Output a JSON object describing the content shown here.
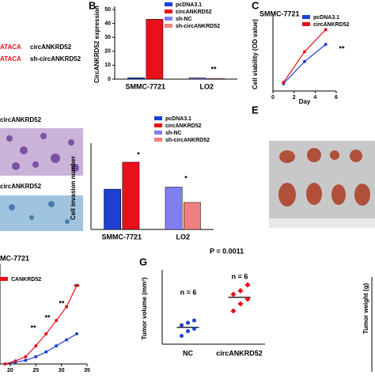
{
  "panel_labels": [
    "B",
    "C",
    "E",
    "G"
  ],
  "texts": {
    "top_row1": "ATACA",
    "top_row1_name": "circANKRD52",
    "top_row2": "ATACA",
    "top_row2_name": "sh-circANKRD52",
    "image_label1": "circANKRD52",
    "image_label2": "circANKRD52",
    "weight_label": "Tumor weight (g)"
  },
  "chart_data": [
    {
      "type": "bar",
      "y_label": "CircANKRD52 expression",
      "categories": [
        "SMMC-7721",
        "LO2"
      ],
      "series": [
        {
          "name": "pcDNA3.1",
          "color": "#1f3fd0",
          "values": [
            1,
            null
          ]
        },
        {
          "name": "circANKRD52",
          "color": "#e8101a",
          "values": [
            43,
            null
          ]
        },
        {
          "name": "sh-NC",
          "color": "#7f7ff0",
          "values": [
            null,
            1
          ]
        },
        {
          "name": "sh-circANKRD52",
          "color": "#f07f80",
          "values": [
            null,
            0.5
          ]
        }
      ],
      "ylim": [
        0,
        50
      ],
      "yticks": [
        0,
        10,
        20,
        30,
        40,
        50
      ],
      "annotations": [
        "**",
        "**"
      ]
    },
    {
      "type": "line",
      "title": "SMMC-7721",
      "x_label": "Day",
      "y_label": "Cell viability (OD value)",
      "x": [
        1,
        3,
        5
      ],
      "xlim": [
        0,
        6
      ],
      "xticks": [
        0,
        2,
        4,
        6
      ],
      "ylim": [
        0,
        3
      ],
      "series": [
        {
          "name": "pcDNA3.1",
          "color": "#1f3fd0",
          "values": [
            0.3,
            1.2,
            1.9
          ]
        },
        {
          "name": "circANKRD52",
          "color": "#e8101a",
          "values": [
            0.35,
            1.6,
            2.5
          ]
        }
      ],
      "annotations": [
        "**"
      ]
    },
    {
      "type": "bar",
      "y_label": "Cell invasion number",
      "categories": [
        "SMMC-7721",
        "LO2"
      ],
      "series": [
        {
          "name": "pcDNA3.1",
          "color": "#1f3fd0",
          "values": [
            97,
            null
          ]
        },
        {
          "name": "circANKRD52",
          "color": "#e8101a",
          "values": [
            162,
            null
          ]
        },
        {
          "name": "sh-NC",
          "color": "#7f7ff0",
          "values": [
            null,
            102
          ]
        },
        {
          "name": "sh-circANKRD52",
          "color": "#f07f80",
          "values": [
            null,
            65
          ]
        }
      ],
      "ylim": [
        0,
        200
      ],
      "annotations": [
        "*",
        "*"
      ]
    },
    {
      "type": "line",
      "title": "MC-7721",
      "x": [
        19,
        21,
        23,
        25,
        27,
        29,
        31,
        33
      ],
      "xlim": [
        18,
        35
      ],
      "xticks": [
        20,
        25,
        30,
        35
      ],
      "ylim": [
        0,
        1.6
      ],
      "series": [
        {
          "name": "NC",
          "color": "#1f3fd0",
          "values": [
            0,
            0.03,
            0.06,
            0.12,
            0.2,
            0.3,
            0.4,
            0.5
          ]
        },
        {
          "name": "CANKRD52",
          "color": "#e8101a",
          "values": [
            0,
            0.05,
            0.12,
            0.3,
            0.5,
            0.72,
            0.95,
            1.3
          ]
        }
      ],
      "annotations": [
        "**",
        "**",
        "**",
        "**"
      ]
    },
    {
      "type": "dot",
      "title": "P = 0.0011",
      "y_label": "Tumor volume (mm³)",
      "categories": [
        "NC",
        "circANKRD52"
      ],
      "colors": [
        "#1f3fd0",
        "#e8101a"
      ],
      "ylim": [
        0,
        3000
      ],
      "values": [
        [
          350,
          550,
          650,
          800,
          900,
          1000
        ],
        [
          1400,
          1700,
          1900,
          2100,
          2250,
          2500
        ]
      ],
      "annotations": [
        "n = 6",
        "n = 6"
      ]
    }
  ]
}
